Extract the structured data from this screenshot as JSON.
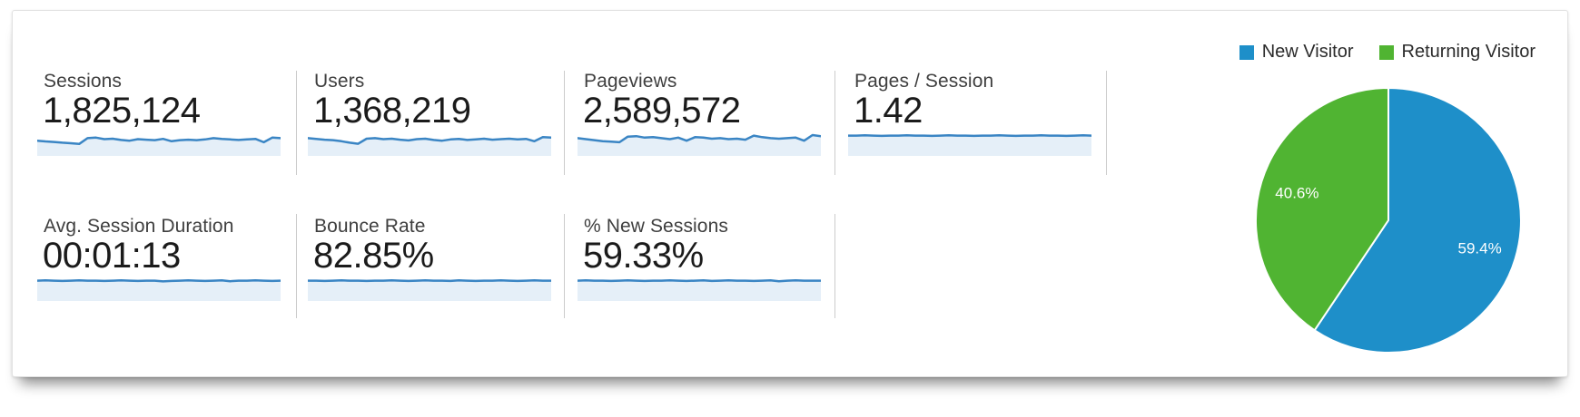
{
  "metrics": [
    {
      "label": "Sessions",
      "value": "1,825,124"
    },
    {
      "label": "Users",
      "value": "1,368,219"
    },
    {
      "label": "Pageviews",
      "value": "2,589,572"
    },
    {
      "label": "Pages / Session",
      "value": "1.42"
    },
    {
      "label": "Avg. Session Duration",
      "value": "00:01:13"
    },
    {
      "label": "Bounce Rate",
      "value": "82.85%"
    },
    {
      "label": "% New Sessions",
      "value": "59.33%"
    }
  ],
  "chart_data": [
    {
      "type": "pie",
      "name": "new-vs-returning-visitors",
      "slices": [
        {
          "label": "New Visitor",
          "value": 59.4,
          "display": "59.4%",
          "color": "#1e8fc9"
        },
        {
          "label": "Returning Visitor",
          "value": 40.6,
          "display": "40.6%",
          "color": "#50b432"
        }
      ],
      "start_angle_deg": 0,
      "direction": "clockwise",
      "legend_position": "top-right",
      "label_color": "#ffffff",
      "label_radius_fraction": 0.72
    },
    {
      "type": "line",
      "name": "metric-sparklines",
      "note": "normalized sparkline heights 0-1 per metric, same order as metrics[]",
      "line_color": "#3a85c4",
      "fill_color": "#e5eff8",
      "series": [
        {
          "name": "Sessions",
          "values": [
            0.6,
            0.57,
            0.55,
            0.52,
            0.5,
            0.47,
            0.7,
            0.72,
            0.66,
            0.68,
            0.63,
            0.6,
            0.66,
            0.64,
            0.62,
            0.67,
            0.58,
            0.62,
            0.64,
            0.62,
            0.65,
            0.7,
            0.67,
            0.65,
            0.63,
            0.65,
            0.67,
            0.54,
            0.72,
            0.7
          ]
        },
        {
          "name": "Users",
          "values": [
            0.7,
            0.67,
            0.64,
            0.62,
            0.58,
            0.52,
            0.48,
            0.68,
            0.7,
            0.66,
            0.68,
            0.64,
            0.61,
            0.66,
            0.68,
            0.63,
            0.6,
            0.65,
            0.67,
            0.63,
            0.65,
            0.68,
            0.64,
            0.66,
            0.68,
            0.65,
            0.67,
            0.58,
            0.74,
            0.72
          ]
        },
        {
          "name": "Pageviews",
          "values": [
            0.7,
            0.66,
            0.62,
            0.58,
            0.56,
            0.54,
            0.76,
            0.78,
            0.72,
            0.74,
            0.7,
            0.66,
            0.72,
            0.6,
            0.74,
            0.72,
            0.68,
            0.7,
            0.66,
            0.68,
            0.64,
            0.8,
            0.74,
            0.7,
            0.68,
            0.7,
            0.72,
            0.6,
            0.82,
            0.78
          ]
        },
        {
          "name": "Pages / Session",
          "values": [
            0.8,
            0.8,
            0.81,
            0.8,
            0.79,
            0.8,
            0.8,
            0.81,
            0.8,
            0.8,
            0.79,
            0.8,
            0.81,
            0.8,
            0.8,
            0.79,
            0.8,
            0.8,
            0.81,
            0.8,
            0.79,
            0.8,
            0.8,
            0.81,
            0.8,
            0.8,
            0.79,
            0.8,
            0.81,
            0.8
          ]
        },
        {
          "name": "Avg. Session Duration",
          "values": [
            0.8,
            0.81,
            0.8,
            0.79,
            0.8,
            0.81,
            0.8,
            0.8,
            0.79,
            0.8,
            0.81,
            0.8,
            0.79,
            0.8,
            0.8,
            0.77,
            0.79,
            0.8,
            0.81,
            0.8,
            0.79,
            0.8,
            0.81,
            0.78,
            0.8,
            0.8,
            0.81,
            0.8,
            0.79,
            0.8
          ]
        },
        {
          "name": "Bounce Rate",
          "values": [
            0.8,
            0.8,
            0.79,
            0.8,
            0.81,
            0.8,
            0.8,
            0.79,
            0.8,
            0.8,
            0.81,
            0.8,
            0.79,
            0.8,
            0.81,
            0.8,
            0.8,
            0.79,
            0.81,
            0.8,
            0.79,
            0.8,
            0.8,
            0.81,
            0.8,
            0.79,
            0.8,
            0.81,
            0.8,
            0.8
          ]
        },
        {
          "name": "% New Sessions",
          "values": [
            0.8,
            0.81,
            0.8,
            0.8,
            0.79,
            0.8,
            0.81,
            0.8,
            0.79,
            0.8,
            0.8,
            0.81,
            0.8,
            0.79,
            0.8,
            0.81,
            0.79,
            0.8,
            0.81,
            0.8,
            0.8,
            0.79,
            0.8,
            0.81,
            0.78,
            0.8,
            0.81,
            0.8,
            0.8,
            0.8
          ]
        }
      ]
    }
  ],
  "colors": {
    "accent_blue": "#1e8fc9",
    "accent_green": "#50b432",
    "spark_line": "#3a85c4",
    "spark_fill": "#e5eff8",
    "divider": "#cccccc",
    "label_text": "#3f3f3f",
    "value_text": "#1b1b1b",
    "card_bg": "#ffffff"
  }
}
